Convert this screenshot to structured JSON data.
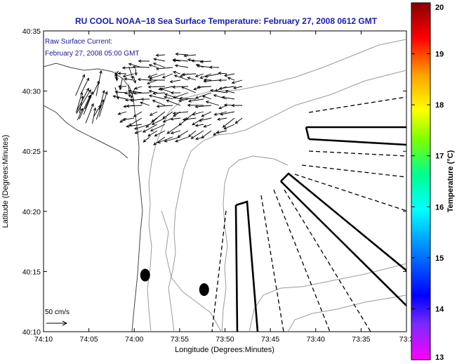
{
  "chart_data": {
    "type": "map",
    "title": "RU COOL  NOAA−18  Sea Surface Temperature:  February 27, 2008 0612 GMT",
    "annotation_line1": "Raw Surface Current:",
    "annotation_line2": "February 27, 2008 05:00 GMT",
    "xlabel": "Longitude (Degrees:Minutes)",
    "ylabel": "Latitude (Degrees:Minutes)",
    "x_ticks": [
      "74:10",
      "74:05",
      "74:00",
      "73:55",
      "73:50",
      "73:45",
      "73:40",
      "73:35",
      "73:3"
    ],
    "y_ticks": [
      "40:35",
      "40:30",
      "40:25",
      "40:20",
      "40:15",
      "40:10"
    ],
    "xlim_minutes": [
      10,
      30
    ],
    "ylim_minutes": [
      10,
      35
    ],
    "scale_label": "50 cm/s",
    "colorbar": {
      "label": "Temperature (°C)",
      "min": 13,
      "max": 20,
      "ticks": [
        "20",
        "19",
        "18",
        "17",
        "16",
        "15",
        "14",
        "13"
      ],
      "colors": [
        "#ff00ff",
        "#0000ff",
        "#00aaff",
        "#00ffff",
        "#00ff80",
        "#88ff00",
        "#ffff00",
        "#ff9900",
        "#ff0000",
        "#990000"
      ]
    },
    "buoys": [
      {
        "lon_min": 58.8,
        "lat_min": 14.7
      },
      {
        "lon_min": 52.3,
        "lat_min": 13.5
      }
    ]
  }
}
